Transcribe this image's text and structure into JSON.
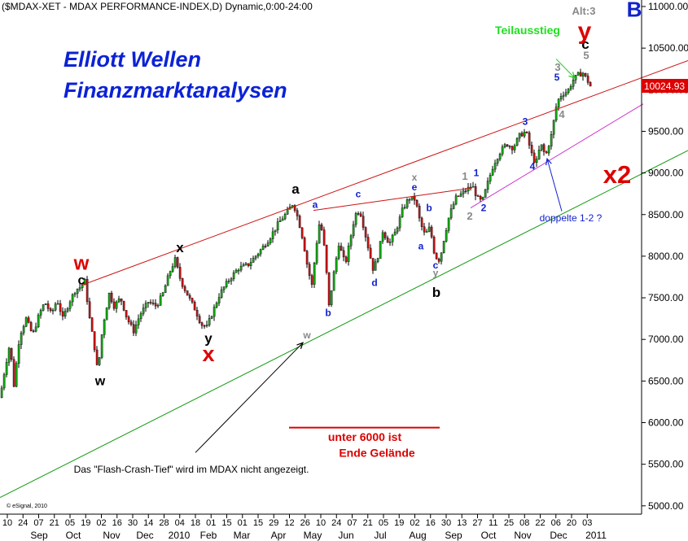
{
  "header": {
    "title": "($MDAX-XET - MDAX PERFORMANCE-INDEX,D) Dynamic,0:00-24:00"
  },
  "promo": {
    "line1": "Elliott Wellen",
    "line2": "Finanzmarktanalysen"
  },
  "copyright": "© eSignal, 2010",
  "last_price": "10024.93",
  "chart_data": {
    "type": "candlestick",
    "title": "($MDAX-XET - MDAX PERFORMANCE-INDEX,D) Dynamic,0:00-24:00",
    "ylim": [
      4950,
      11000
    ],
    "y_ticks": [
      "11000.00",
      "10500.00",
      "10000.00",
      "9500.00",
      "9000.00",
      "8500.00",
      "8000.00",
      "7500.00",
      "7000.00",
      "6500.00",
      "6000.00",
      "5500.00",
      "5000.00"
    ],
    "x_ticks": [
      "10",
      "24",
      "07",
      "21",
      "05",
      "19",
      "02",
      "16",
      "30",
      "14",
      "28",
      "04",
      "18",
      "01",
      "15",
      "01",
      "15",
      "29",
      "12",
      "26",
      "10",
      "24",
      "07",
      "21",
      "05",
      "19",
      "02",
      "16",
      "30",
      "13",
      "27",
      "11",
      "25",
      "08",
      "22",
      "06",
      "20",
      "03"
    ],
    "x_months": [
      "Sep",
      "Oct",
      "Nov",
      "Dec",
      "2010",
      "Feb",
      "Mar",
      "Apr",
      "May",
      "Jun",
      "Jul",
      "Aug",
      "Sep",
      "Oct",
      "Nov",
      "Dec",
      "2011"
    ],
    "price_path": [
      [
        0,
        6300
      ],
      [
        6,
        6650
      ],
      [
        12,
        6950
      ],
      [
        17,
        6450
      ],
      [
        24,
        7050
      ],
      [
        32,
        7250
      ],
      [
        40,
        7050
      ],
      [
        48,
        7300
      ],
      [
        55,
        7450
      ],
      [
        63,
        7300
      ],
      [
        70,
        7480
      ],
      [
        77,
        7250
      ],
      [
        85,
        7450
      ],
      [
        93,
        7600
      ],
      [
        99,
        7630
      ],
      [
        104,
        7700
      ],
      [
        110,
        7250
      ],
      [
        116,
        6900
      ],
      [
        120,
        6600
      ],
      [
        126,
        7150
      ],
      [
        134,
        7550
      ],
      [
        140,
        7400
      ],
      [
        148,
        7500
      ],
      [
        156,
        7250
      ],
      [
        164,
        7100
      ],
      [
        172,
        7300
      ],
      [
        182,
        7450
      ],
      [
        192,
        7400
      ],
      [
        200,
        7550
      ],
      [
        208,
        7800
      ],
      [
        215,
        7960
      ],
      [
        222,
        7700
      ],
      [
        232,
        7500
      ],
      [
        240,
        7350
      ],
      [
        247,
        7180
      ],
      [
        254,
        7150
      ],
      [
        262,
        7350
      ],
      [
        270,
        7550
      ],
      [
        280,
        7700
      ],
      [
        292,
        7850
      ],
      [
        305,
        7900
      ],
      [
        318,
        8050
      ],
      [
        330,
        8200
      ],
      [
        342,
        8400
      ],
      [
        352,
        8520
      ],
      [
        360,
        8640
      ],
      [
        366,
        8450
      ],
      [
        372,
        8200
      ],
      [
        378,
        7850
      ],
      [
        383,
        7650
      ],
      [
        388,
        8100
      ],
      [
        393,
        8450
      ],
      [
        399,
        8050
      ],
      [
        404,
        7400
      ],
      [
        410,
        7800
      ],
      [
        416,
        8150
      ],
      [
        424,
        7900
      ],
      [
        430,
        8200
      ],
      [
        436,
        8500
      ],
      [
        442,
        8550
      ],
      [
        450,
        8200
      ],
      [
        458,
        7850
      ],
      [
        463,
        7950
      ],
      [
        470,
        8300
      ],
      [
        478,
        8150
      ],
      [
        486,
        8300
      ],
      [
        494,
        8550
      ],
      [
        502,
        8700
      ],
      [
        510,
        8680
      ],
      [
        516,
        8400
      ],
      [
        522,
        8250
      ],
      [
        528,
        8350
      ],
      [
        534,
        8000
      ],
      [
        540,
        7950
      ],
      [
        546,
        8250
      ],
      [
        552,
        8500
      ],
      [
        560,
        8700
      ],
      [
        567,
        8750
      ],
      [
        573,
        8800
      ],
      [
        580,
        8850
      ],
      [
        586,
        8700
      ],
      [
        592,
        8650
      ],
      [
        598,
        8850
      ],
      [
        606,
        9100
      ],
      [
        614,
        9250
      ],
      [
        622,
        9350
      ],
      [
        630,
        9300
      ],
      [
        638,
        9450
      ],
      [
        646,
        9500
      ],
      [
        652,
        9250
      ],
      [
        658,
        9100
      ],
      [
        664,
        9350
      ],
      [
        670,
        9200
      ],
      [
        677,
        9450
      ],
      [
        684,
        9850
      ],
      [
        690,
        9950
      ],
      [
        697,
        9980
      ],
      [
        704,
        10120
      ],
      [
        710,
        10180
      ],
      [
        716,
        10200
      ],
      [
        722,
        10100
      ],
      [
        726,
        10025
      ]
    ],
    "lines": [
      {
        "name": "upper-channel",
        "color": "#cc1111",
        "points": [
          [
            100,
            7650
          ],
          [
            845,
            10350
          ]
        ]
      },
      {
        "name": "wave-connector",
        "color": "#cc1111",
        "points": [
          [
            385,
            8550
          ],
          [
            580,
            8820
          ]
        ]
      },
      {
        "name": "lower-channel",
        "color": "#119911",
        "points": [
          [
            0,
            5100
          ],
          [
            845,
            9270
          ]
        ]
      },
      {
        "name": "support-line",
        "color": "#cc33cc",
        "points": [
          [
            578,
            8580
          ],
          [
            790,
            9830
          ]
        ]
      },
      {
        "name": "underline",
        "color": "#dd0000",
        "points": [
          [
            355,
            5940
          ],
          [
            540,
            5940
          ]
        ]
      }
    ],
    "arrows": [
      {
        "name": "flash-crash-arrow",
        "color": "#000000",
        "from": [
          240,
          5640
        ],
        "to": [
          372,
          6960
        ]
      },
      {
        "name": "doppelte-arrow",
        "color": "#1122cc",
        "from": [
          690,
          8540
        ],
        "to": [
          672,
          9170
        ]
      },
      {
        "name": "teilausstieg-arrow",
        "color": "#22cc22",
        "from": [
          683,
          10370
        ],
        "to": [
          706,
          10140
        ]
      }
    ],
    "annotations": [
      {
        "text": "w",
        "color": "#dd0000",
        "size": 24,
        "weight": "bold",
        "x": 100,
        "y": 7840
      },
      {
        "text": "c",
        "color": "#000000",
        "size": 16,
        "weight": "bold",
        "x": 100,
        "y": 7660
      },
      {
        "text": "w",
        "color": "#000000",
        "size": 16,
        "weight": "bold",
        "x": 123,
        "y": 6450
      },
      {
        "text": "x",
        "color": "#000000",
        "size": 17,
        "weight": "bold",
        "x": 221,
        "y": 8050
      },
      {
        "text": "y",
        "color": "#000000",
        "size": 17,
        "weight": "bold",
        "x": 256,
        "y": 6960
      },
      {
        "text": "x",
        "color": "#dd0000",
        "size": 27,
        "weight": "bold",
        "x": 256,
        "y": 6740
      },
      {
        "text": "a",
        "color": "#000000",
        "size": 17,
        "weight": "bold",
        "x": 363,
        "y": 8750
      },
      {
        "text": "a",
        "color": "#1122cc",
        "size": 12,
        "weight": "bold",
        "x": 387,
        "y": 8580
      },
      {
        "text": "b",
        "color": "#1122cc",
        "size": 12,
        "weight": "bold",
        "x": 403,
        "y": 7280
      },
      {
        "text": "c",
        "color": "#1122cc",
        "size": 12,
        "weight": "bold",
        "x": 440,
        "y": 8710
      },
      {
        "text": "d",
        "color": "#1122cc",
        "size": 12,
        "weight": "bold",
        "x": 460,
        "y": 7640
      },
      {
        "text": "e",
        "color": "#1122cc",
        "size": 12,
        "weight": "bold",
        "x": 509,
        "y": 8790
      },
      {
        "text": "x",
        "color": "#888888",
        "size": 12,
        "weight": "bold",
        "x": 509,
        "y": 8910
      },
      {
        "text": "b",
        "color": "#1122cc",
        "size": 12,
        "weight": "bold",
        "x": 527,
        "y": 8540
      },
      {
        "text": "a",
        "color": "#1122cc",
        "size": 12,
        "weight": "bold",
        "x": 517,
        "y": 8080
      },
      {
        "text": "c",
        "color": "#1122cc",
        "size": 12,
        "weight": "bold",
        "x": 535,
        "y": 7850
      },
      {
        "text": "y",
        "color": "#888888",
        "size": 12,
        "weight": "bold",
        "x": 535,
        "y": 7760
      },
      {
        "text": "b",
        "color": "#000000",
        "size": 17,
        "weight": "bold",
        "x": 536,
        "y": 7510
      },
      {
        "text": "1",
        "color": "#888888",
        "size": 13,
        "weight": "bold",
        "x": 571,
        "y": 8920
      },
      {
        "text": "1",
        "color": "#1122cc",
        "size": 12,
        "weight": "bold",
        "x": 585,
        "y": 8960
      },
      {
        "text": "2",
        "color": "#888888",
        "size": 13,
        "weight": "bold",
        "x": 577,
        "y": 8440
      },
      {
        "text": "2",
        "color": "#1122cc",
        "size": 12,
        "weight": "bold",
        "x": 594,
        "y": 8540
      },
      {
        "text": "3",
        "color": "#1122cc",
        "size": 12,
        "weight": "bold",
        "x": 645,
        "y": 9580
      },
      {
        "text": "4",
        "color": "#1122cc",
        "size": 12,
        "weight": "bold",
        "x": 654,
        "y": 9040
      },
      {
        "text": "3",
        "color": "#888888",
        "size": 13,
        "weight": "bold",
        "x": 685,
        "y": 10230
      },
      {
        "text": "5",
        "color": "#1122cc",
        "size": 12,
        "weight": "bold",
        "x": 684,
        "y": 10110
      },
      {
        "text": "4",
        "color": "#888888",
        "size": 13,
        "weight": "bold",
        "x": 690,
        "y": 9660
      },
      {
        "text": "5",
        "color": "#888888",
        "size": 13,
        "weight": "bold",
        "x": 720,
        "y": 10370
      },
      {
        "text": "c",
        "color": "#000000",
        "size": 17,
        "weight": "bold",
        "x": 719,
        "y": 10490
      },
      {
        "text": "y",
        "color": "#dd0000",
        "size": 30,
        "weight": "bold",
        "x": 718,
        "y": 10610
      },
      {
        "text": "B",
        "color": "#1122cc",
        "size": 26,
        "weight": "bold",
        "x": 779,
        "y": 10880
      },
      {
        "text": "Alt:3",
        "color": "#888888",
        "size": 13,
        "weight": "bold",
        "x": 717,
        "y": 10900
      },
      {
        "text": "Teilausstieg",
        "color": "#22dd22",
        "size": 14,
        "weight": "bold",
        "x": 648,
        "y": 10670
      },
      {
        "text": "doppelte 1-2 ?",
        "color": "#1122cc",
        "size": 12,
        "weight": "normal",
        "x": 701,
        "y": 8420
      },
      {
        "text": "x2",
        "color": "#dd0000",
        "size": 31,
        "weight": "bold",
        "x": 758,
        "y": 8880
      },
      {
        "text": "w",
        "color": "#888888",
        "size": 12,
        "weight": "bold",
        "x": 377,
        "y": 7010
      },
      {
        "text": "unter 6000 ist",
        "color": "#dd0000",
        "size": 14,
        "weight": "bold",
        "x": 448,
        "y": 5780
      },
      {
        "text": "Ende Gelände",
        "color": "#dd0000",
        "size": 14,
        "weight": "bold",
        "x": 463,
        "y": 5590
      },
      {
        "text": "Das \"Flash-Crash-Tief\" wird im MDAX nicht angezeigt.",
        "color": "#000000",
        "size": 12,
        "weight": "normal",
        "x": 235,
        "y": 5400
      }
    ]
  }
}
